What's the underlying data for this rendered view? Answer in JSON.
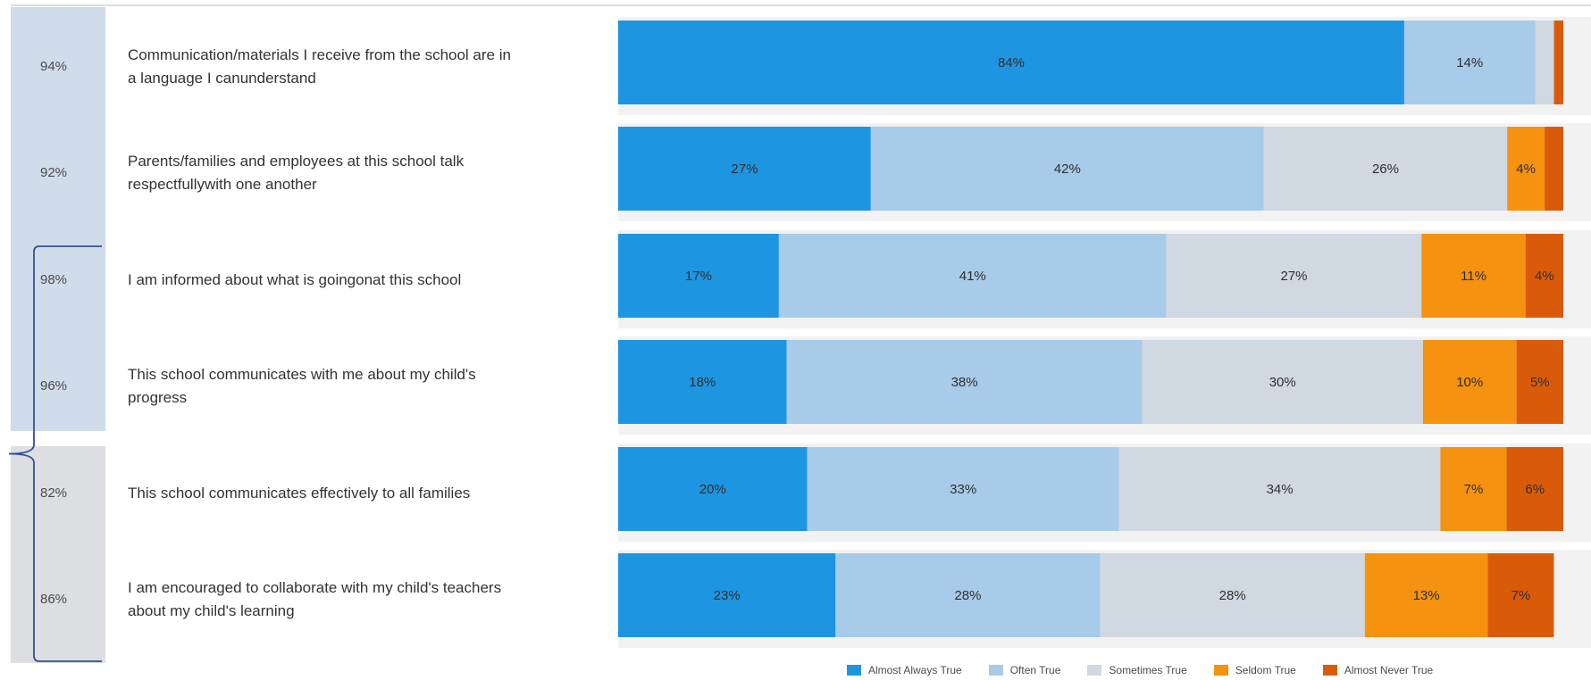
{
  "chart_data": {
    "type": "bar",
    "orientation": "horizontal",
    "stacked": true,
    "categories": [
      [
        "Communication/materials I receive from the school are in",
        "a language I canunderstand"
      ],
      [
        "Parents/families and employees at this school talk",
        "respectfullywith one another"
      ],
      [
        "I am informed about what is goingonat this school"
      ],
      [
        "This school communicates with me about my child's",
        "progress"
      ],
      [
        "This school communicates effectively to all families"
      ],
      [
        "I am encouraged to collaborate with my child's teachers",
        "about my child's learning"
      ]
    ],
    "positive_totals": [
      "94%",
      "92%",
      "98%",
      "96%",
      "82%",
      "86%"
    ],
    "series": [
      {
        "name": "Almost Always True",
        "color": "#1e95e0",
        "values": [
          84,
          27,
          17,
          18,
          20,
          23
        ]
      },
      {
        "name": "Often True",
        "color": "#a7cbe8",
        "values": [
          14,
          42,
          41,
          38,
          33,
          28
        ]
      },
      {
        "name": "Sometimes True",
        "color": "#d0d8e2",
        "values": [
          2,
          26,
          27,
          30,
          34,
          28
        ]
      },
      {
        "name": "Seldom True",
        "color": "#f5920f",
        "values": [
          0,
          4,
          11,
          10,
          7,
          13
        ]
      },
      {
        "name": "Almost Never True",
        "color": "#d95b0a",
        "values": [
          1,
          2,
          4,
          5,
          6,
          7
        ]
      }
    ],
    "segment_labels": [
      [
        "84%",
        "14%",
        "",
        "",
        ""
      ],
      [
        "27%",
        "42%",
        "26%",
        "4%",
        ""
      ],
      [
        "17%",
        "41%",
        "27%",
        "11%",
        "4%"
      ],
      [
        "18%",
        "38%",
        "30%",
        "10%",
        "5%"
      ],
      [
        "20%",
        "33%",
        "34%",
        "7%",
        "6%"
      ],
      [
        "23%",
        "28%",
        "28%",
        "13%",
        "7%"
      ]
    ],
    "xlim": [
      0,
      100
    ],
    "grid": false,
    "legend_position": "bottom-right"
  },
  "legend": [
    {
      "label": "Almost Always True",
      "color": "#1e95e0"
    },
    {
      "label": "Often True",
      "color": "#a7cbe8"
    },
    {
      "label": "Sometimes True",
      "color": "#d0d8e2"
    },
    {
      "label": "Seldom True",
      "color": "#f5920f"
    },
    {
      "label": "Almost Never True",
      "color": "#d95b0a"
    }
  ],
  "colors": {
    "group_top_background": "#d1dcea",
    "group_bottom_background": "#dcdee2",
    "row_background": "#f2f2f2",
    "bracket": "#34508f"
  }
}
